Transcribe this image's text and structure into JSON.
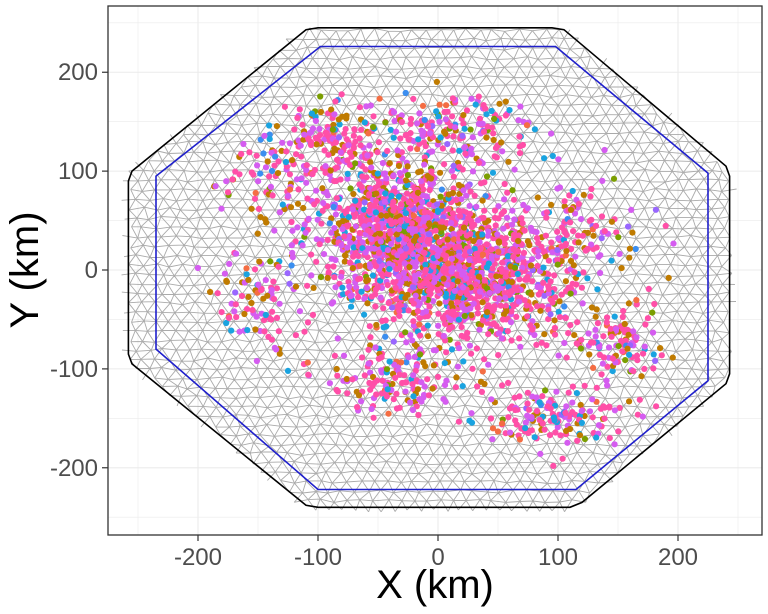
{
  "chart_data": {
    "type": "scatter",
    "title": "",
    "xlabel": "X (km)",
    "ylabel": "Y (km)",
    "xlim": [
      -275,
      270
    ],
    "ylim": [
      -268,
      267
    ],
    "grid": true,
    "legend": "none",
    "x_ticks": [
      -200,
      -100,
      0,
      100,
      200
    ],
    "x_tick_labels": [
      "-200",
      "-100",
      "0",
      "100",
      "200"
    ],
    "y_ticks": [
      -200,
      -100,
      0,
      100,
      200
    ],
    "y_tick_labels": [
      "-200",
      "-100",
      "0",
      "100",
      "200"
    ],
    "outer_boundary": [
      [
        -100,
        245
      ],
      [
        95,
        245
      ],
      [
        105,
        243
      ],
      [
        240,
        105
      ],
      [
        243,
        95
      ],
      [
        243,
        -105
      ],
      [
        240,
        -115
      ],
      [
        120,
        -235
      ],
      [
        110,
        -240
      ],
      [
        -100,
        -240
      ],
      [
        -110,
        -238
      ],
      [
        -255,
        -95
      ],
      [
        -258,
        -85
      ],
      [
        -258,
        90
      ],
      [
        -255,
        100
      ],
      [
        -110,
        243
      ]
    ],
    "inner_boundary": [
      [
        -98,
        226
      ],
      [
        98,
        226
      ],
      [
        225,
        98
      ],
      [
        225,
        -112
      ],
      [
        115,
        -222
      ],
      [
        -100,
        -222
      ],
      [
        -235,
        -80
      ],
      [
        -235,
        95
      ]
    ],
    "mesh_color": "#aaaaaa",
    "outer_boundary_color": "#000000",
    "inner_boundary_color": "#1f1fcc",
    "point_colors": [
      "#ff4fa8",
      "#d55cf0",
      "#c07b00",
      "#1aa3e0",
      "#7b9e00",
      "#f46d43",
      "#9966ff",
      "#3b8ef0"
    ],
    "point_clusters": [
      {
        "center": [
          -30,
          40
        ],
        "spread": [
          60,
          55
        ],
        "count": 1100
      },
      {
        "center": [
          25,
          -10
        ],
        "spread": [
          70,
          55
        ],
        "count": 1000
      },
      {
        "center": [
          -90,
          130
        ],
        "spread": [
          35,
          40
        ],
        "count": 140
      },
      {
        "center": [
          10,
          140
        ],
        "spread": [
          70,
          35
        ],
        "count": 200
      },
      {
        "center": [
          100,
          -150
        ],
        "spread": [
          45,
          25
        ],
        "count": 150
      },
      {
        "center": [
          -40,
          -110
        ],
        "spread": [
          55,
          30
        ],
        "count": 140
      },
      {
        "center": [
          150,
          -70
        ],
        "spread": [
          35,
          35
        ],
        "count": 110
      },
      {
        "center": [
          -150,
          -30
        ],
        "spread": [
          35,
          50
        ],
        "count": 90
      },
      {
        "center": [
          120,
          40
        ],
        "spread": [
          50,
          40
        ],
        "count": 110
      },
      {
        "center": [
          -140,
          90
        ],
        "spread": [
          35,
          40
        ],
        "count": 80
      }
    ]
  }
}
